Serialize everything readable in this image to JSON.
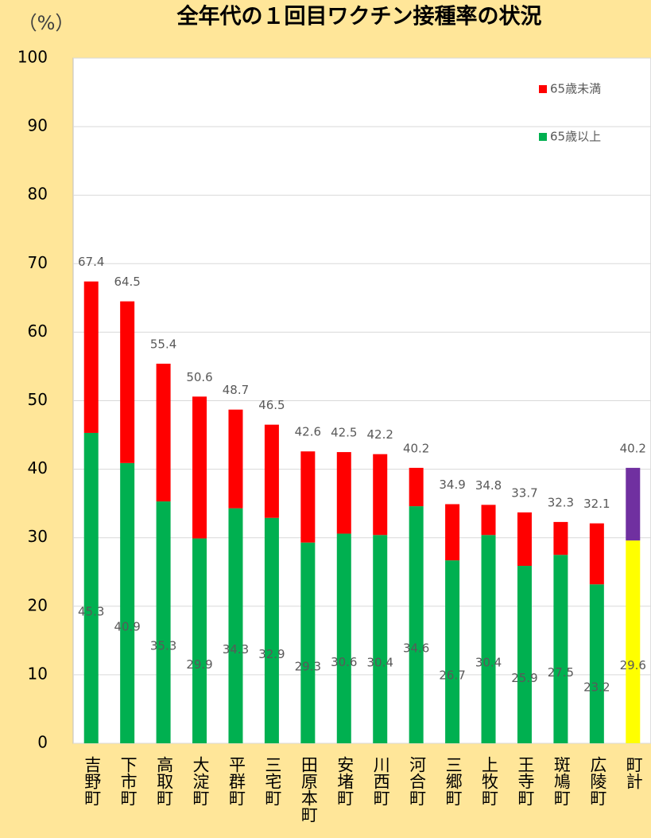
{
  "chart_data": {
    "type": "stacked_bar",
    "title": "全年代の１回目ワクチン接種率の状況",
    "y_label": "（%）",
    "categories": [
      "吉野町",
      "下市町",
      "高取町",
      "大淀町",
      "平群町",
      "三宅町",
      "田原本町",
      "安堵町",
      "川西町",
      "河合町",
      "三郷町",
      "上牧町",
      "王寺町",
      "斑鳩町",
      "広陵町",
      "町計"
    ],
    "series": [
      {
        "name": "65歳以上",
        "color": "#00b050",
        "colors": [
          "#00b050",
          "#00b050",
          "#00b050",
          "#00b050",
          "#00b050",
          "#00b050",
          "#00b050",
          "#00b050",
          "#00b050",
          "#00b050",
          "#00b050",
          "#00b050",
          "#00b050",
          "#00b050",
          "#00b050",
          "#ffff00"
        ],
        "values": [
          45.3,
          40.9,
          35.3,
          29.9,
          34.3,
          32.9,
          29.3,
          30.6,
          30.4,
          34.6,
          26.7,
          30.4,
          25.9,
          27.5,
          23.2,
          29.6
        ]
      },
      {
        "name": "65歳未満",
        "color": "#ff0000",
        "colors": [
          "#ff0000",
          "#ff0000",
          "#ff0000",
          "#ff0000",
          "#ff0000",
          "#ff0000",
          "#ff0000",
          "#ff0000",
          "#ff0000",
          "#ff0000",
          "#ff0000",
          "#ff0000",
          "#ff0000",
          "#ff0000",
          "#ff0000",
          "#7030a0"
        ],
        "values": [
          22.1,
          23.6,
          20.1,
          20.7,
          14.4,
          13.6,
          13.3,
          11.9,
          11.8,
          5.6,
          8.2,
          4.4,
          7.8,
          4.8,
          8.9,
          10.6
        ]
      }
    ],
    "totals": [
      67.4,
      64.5,
      55.4,
      50.6,
      48.7,
      46.5,
      42.6,
      42.5,
      42.2,
      40.2,
      34.9,
      34.8,
      33.7,
      32.3,
      32.1,
      40.2
    ],
    "ylim": [
      0,
      100
    ],
    "yticks": [
      0,
      10,
      20,
      30,
      40,
      50,
      60,
      70,
      80,
      90,
      100
    ],
    "grid": true
  }
}
